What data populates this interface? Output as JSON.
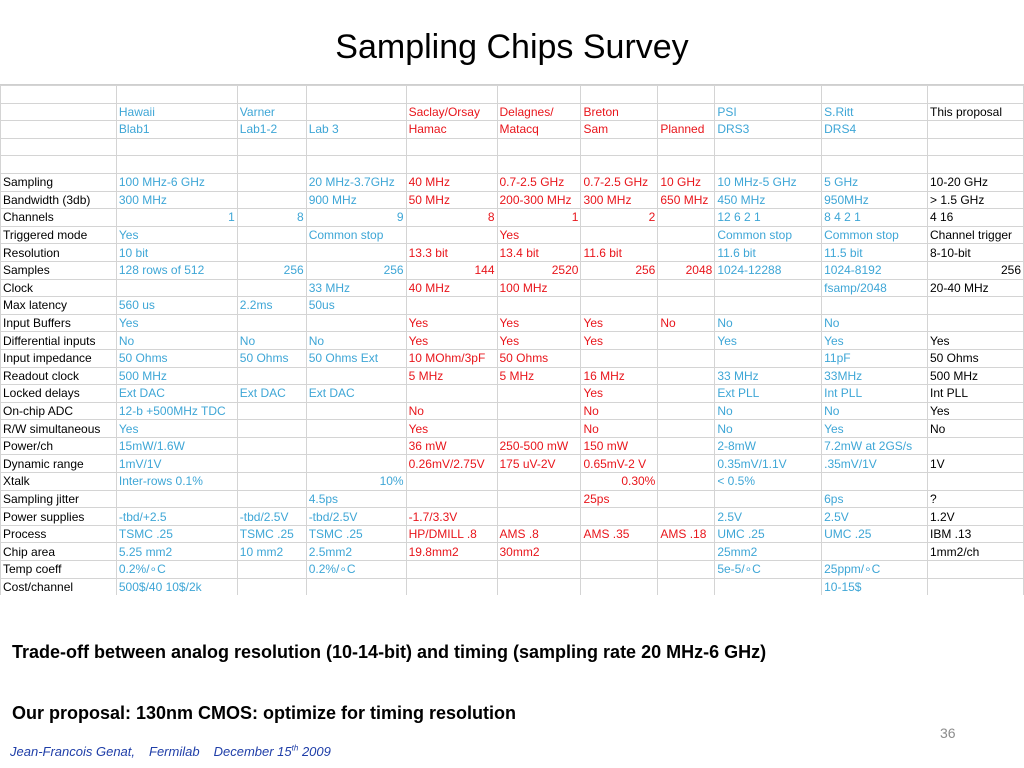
{
  "slide": {
    "title": "Sampling Chips Survey",
    "caption_tradeoff": "Trade-off between analog resolution (10-14-bit) and  timing (sampling rate  20 MHz-6 GHz)",
    "caption_proposal": "Our proposal:   130nm CMOS:  optimize for timing resolution",
    "page_number": "36",
    "footer": {
      "author": "Jean-Francois Genat,",
      "lab": "Fermilab",
      "date_prefix": "December 15",
      "date_sup": "th",
      "year": "2009"
    }
  },
  "table": {
    "columns": [
      {
        "color": "#3ea6d6"
      },
      {
        "color": "#3ea6d6"
      },
      {
        "color": "#3ea6d6"
      },
      {
        "color": "#e8151b"
      },
      {
        "color": "#e8151b"
      },
      {
        "color": "#e8151b"
      },
      {
        "color": "#e8151b"
      },
      {
        "color": "#3ea6d6"
      },
      {
        "color": "#3ea6d6"
      },
      {
        "color": "#000000"
      }
    ],
    "rows": [
      {
        "label": "",
        "cells": [
          {
            "t": ""
          },
          {
            "t": ""
          },
          {
            "t": ""
          },
          {
            "t": ""
          },
          {
            "t": ""
          },
          {
            "t": ""
          },
          {
            "t": ""
          },
          {
            "t": ""
          },
          {
            "t": ""
          },
          {
            "t": ""
          }
        ]
      },
      {
        "label": "",
        "cells": [
          {
            "t": "Hawaii"
          },
          {
            "t": " Varner"
          },
          {
            "t": ""
          },
          {
            "t": "Saclay/Orsay"
          },
          {
            "t": "Delagnes/"
          },
          {
            "t": "Breton"
          },
          {
            "t": ""
          },
          {
            "t": "PSI"
          },
          {
            "t": "S.Ritt"
          },
          {
            "t": "This proposal"
          }
        ]
      },
      {
        "label": "",
        "cells": [
          {
            "t": "Blab1"
          },
          {
            "t": "Lab1-2"
          },
          {
            "t": "Lab 3"
          },
          {
            "t": "Hamac"
          },
          {
            "t": "Matacq"
          },
          {
            "t": "Sam"
          },
          {
            "t": "Planned"
          },
          {
            "t": "DRS3"
          },
          {
            "t": "DRS4"
          },
          {
            "t": ""
          }
        ]
      },
      {
        "label": "",
        "cells": [
          {
            "t": ""
          },
          {
            "t": ""
          },
          {
            "t": ""
          },
          {
            "t": ""
          },
          {
            "t": ""
          },
          {
            "t": ""
          },
          {
            "t": ""
          },
          {
            "t": ""
          },
          {
            "t": ""
          },
          {
            "t": ""
          }
        ]
      },
      {
        "label": "",
        "cells": [
          {
            "t": ""
          },
          {
            "t": ""
          },
          {
            "t": ""
          },
          {
            "t": ""
          },
          {
            "t": ""
          },
          {
            "t": ""
          },
          {
            "t": ""
          },
          {
            "t": ""
          },
          {
            "t": ""
          },
          {
            "t": ""
          }
        ]
      },
      {
        "label": "Sampling",
        "cells": [
          {
            "t": "100 MHz-6 GHz"
          },
          {
            "t": ""
          },
          {
            "t": "20 MHz-3.7GHz"
          },
          {
            "t": "40 MHz"
          },
          {
            "t": "0.7-2.5 GHz"
          },
          {
            "t": "0.7-2.5 GHz"
          },
          {
            "t": "10 GHz"
          },
          {
            "t": "10 MHz-5 GHz"
          },
          {
            "t": "5 GHz"
          },
          {
            "t": "10-20 GHz"
          }
        ]
      },
      {
        "label": "Bandwidth (3db)",
        "cells": [
          {
            "t": "300 MHz"
          },
          {
            "t": ""
          },
          {
            "t": "900 MHz"
          },
          {
            "t": "50 MHz"
          },
          {
            "t": "200-300 MHz"
          },
          {
            "t": "300 MHz"
          },
          {
            "t": "650 MHz"
          },
          {
            "t": "450 MHz"
          },
          {
            "t": "950MHz"
          },
          {
            "t": "> 1.5 GHz"
          }
        ]
      },
      {
        "label": "Channels",
        "cells": [
          {
            "t": "1",
            "r": 1
          },
          {
            "t": "8",
            "r": 1
          },
          {
            "t": "9",
            "r": 1
          },
          {
            "t": "8",
            "r": 1
          },
          {
            "t": "1",
            "r": 1
          },
          {
            "t": "2",
            "r": 1
          },
          {
            "t": ""
          },
          {
            "t": "12 6 2 1"
          },
          {
            "t": "8 4 2 1"
          },
          {
            "t": "4 16"
          }
        ]
      },
      {
        "label": "Triggered mode",
        "cells": [
          {
            "t": "Yes"
          },
          {
            "t": ""
          },
          {
            "t": "Common stop"
          },
          {
            "t": ""
          },
          {
            "t": "Yes"
          },
          {
            "t": ""
          },
          {
            "t": ""
          },
          {
            "t": "Common stop"
          },
          {
            "t": "Common stop"
          },
          {
            "t": "Channel trigger"
          }
        ]
      },
      {
        "label": "Resolution",
        "cells": [
          {
            "t": "10 bit"
          },
          {
            "t": ""
          },
          {
            "t": ""
          },
          {
            "t": "13.3 bit"
          },
          {
            "t": "13.4 bit"
          },
          {
            "t": "11.6 bit"
          },
          {
            "t": ""
          },
          {
            "t": "11.6 bit"
          },
          {
            "t": "11.5 bit"
          },
          {
            "t": "8-10-bit"
          }
        ]
      },
      {
        "label": "Samples",
        "cells": [
          {
            "t": "128 rows of 512"
          },
          {
            "t": "256",
            "r": 1
          },
          {
            "t": "256",
            "r": 1
          },
          {
            "t": "144",
            "r": 1
          },
          {
            "t": "2520",
            "r": 1
          },
          {
            "t": "256",
            "r": 1
          },
          {
            "t": "2048",
            "r": 1
          },
          {
            "t": "1024-12288"
          },
          {
            "t": "1024-8192"
          },
          {
            "t": "256",
            "r": 1
          }
        ]
      },
      {
        "label": "Clock",
        "cells": [
          {
            "t": ""
          },
          {
            "t": ""
          },
          {
            "t": "33 MHz"
          },
          {
            "t": "40 MHz"
          },
          {
            "t": "100 MHz"
          },
          {
            "t": ""
          },
          {
            "t": ""
          },
          {
            "t": ""
          },
          {
            "t": "fsamp/2048"
          },
          {
            "t": "20-40 MHz"
          }
        ]
      },
      {
        "label": "Max latency",
        "cells": [
          {
            "t": "560 us"
          },
          {
            "t": "2.2ms"
          },
          {
            "t": "50us"
          },
          {
            "t": ""
          },
          {
            "t": ""
          },
          {
            "t": ""
          },
          {
            "t": ""
          },
          {
            "t": ""
          },
          {
            "t": ""
          },
          {
            "t": ""
          }
        ]
      },
      {
        "label": "Input Buffers",
        "cells": [
          {
            "t": "Yes"
          },
          {
            "t": ""
          },
          {
            "t": ""
          },
          {
            "t": "Yes"
          },
          {
            "t": "Yes"
          },
          {
            "t": "Yes"
          },
          {
            "t": "No"
          },
          {
            "t": "No"
          },
          {
            "t": "No"
          },
          {
            "t": ""
          }
        ]
      },
      {
        "label": "Differential inputs",
        "cells": [
          {
            "t": "No"
          },
          {
            "t": "No"
          },
          {
            "t": "No"
          },
          {
            "t": "Yes"
          },
          {
            "t": "Yes"
          },
          {
            "t": "Yes"
          },
          {
            "t": ""
          },
          {
            "t": "Yes"
          },
          {
            "t": "Yes"
          },
          {
            "t": "Yes"
          }
        ]
      },
      {
        "label": "Input impedance",
        "cells": [
          {
            "t": "50 Ohms"
          },
          {
            "t": "50 Ohms"
          },
          {
            "t": "50 Ohms Ext"
          },
          {
            "t": "10 MOhm/3pF"
          },
          {
            "t": "50 Ohms"
          },
          {
            "t": ""
          },
          {
            "t": ""
          },
          {
            "t": ""
          },
          {
            "t": "11pF"
          },
          {
            "t": "50 Ohms"
          }
        ]
      },
      {
        "label": "Readout clock",
        "cells": [
          {
            "t": "500 MHz"
          },
          {
            "t": ""
          },
          {
            "t": ""
          },
          {
            "t": "5 MHz"
          },
          {
            "t": "5 MHz"
          },
          {
            "t": "16 MHz"
          },
          {
            "t": ""
          },
          {
            "t": "33 MHz"
          },
          {
            "t": "33MHz"
          },
          {
            "t": "500 MHz"
          }
        ]
      },
      {
        "label": "Locked delays",
        "cells": [
          {
            "t": "Ext DAC"
          },
          {
            "t": "Ext DAC"
          },
          {
            "t": "Ext DAC"
          },
          {
            "t": ""
          },
          {
            "t": ""
          },
          {
            "t": "Yes"
          },
          {
            "t": ""
          },
          {
            "t": "Ext PLL"
          },
          {
            "t": "Int PLL"
          },
          {
            "t": "Int PLL"
          }
        ]
      },
      {
        "label": "On-chip ADC",
        "cells": [
          {
            "t": "12-b +500MHz TDC"
          },
          {
            "t": ""
          },
          {
            "t": ""
          },
          {
            "t": "No"
          },
          {
            "t": ""
          },
          {
            "t": "No"
          },
          {
            "t": ""
          },
          {
            "t": "No"
          },
          {
            "t": "No"
          },
          {
            "t": "Yes"
          }
        ]
      },
      {
        "label": "R/W simultaneous",
        "cells": [
          {
            "t": "Yes"
          },
          {
            "t": ""
          },
          {
            "t": ""
          },
          {
            "t": "Yes"
          },
          {
            "t": ""
          },
          {
            "t": "No"
          },
          {
            "t": ""
          },
          {
            "t": "No"
          },
          {
            "t": "Yes"
          },
          {
            "t": "No"
          }
        ]
      },
      {
        "label": "Power/ch",
        "cells": [
          {
            "t": "15mW/1.6W"
          },
          {
            "t": ""
          },
          {
            "t": ""
          },
          {
            "t": "36 mW"
          },
          {
            "t": "250-500 mW"
          },
          {
            "t": "150 mW"
          },
          {
            "t": ""
          },
          {
            "t": "2-8mW"
          },
          {
            "t": "7.2mW at 2GS/s"
          },
          {
            "t": ""
          }
        ]
      },
      {
        "label": "Dynamic range",
        "cells": [
          {
            "t": "1mV/1V"
          },
          {
            "t": ""
          },
          {
            "t": ""
          },
          {
            "t": "0.26mV/2.75V"
          },
          {
            "t": "175 uV-2V"
          },
          {
            "t": "0.65mV-2 V"
          },
          {
            "t": ""
          },
          {
            "t": "0.35mV/1.1V"
          },
          {
            "t": ".35mV/1V"
          },
          {
            "t": "1V"
          }
        ]
      },
      {
        "label": "Xtalk",
        "cells": [
          {
            "t": "Inter-rows  0.1%"
          },
          {
            "t": ""
          },
          {
            "t": "10%",
            "r": 1
          },
          {
            "t": ""
          },
          {
            "t": ""
          },
          {
            "t": "0.30%",
            "r": 1
          },
          {
            "t": ""
          },
          {
            "t": "< 0.5%"
          },
          {
            "t": ""
          },
          {
            "t": ""
          }
        ]
      },
      {
        "label": "Sampling jitter",
        "cells": [
          {
            "t": ""
          },
          {
            "t": ""
          },
          {
            "t": "4.5ps"
          },
          {
            "t": ""
          },
          {
            "t": ""
          },
          {
            "t": "25ps"
          },
          {
            "t": ""
          },
          {
            "t": ""
          },
          {
            "t": "6ps"
          },
          {
            "t": "?"
          }
        ]
      },
      {
        "label": "Power supplies",
        "cells": [
          {
            "t": " -tbd/+2.5"
          },
          {
            "t": " -tbd/2.5V"
          },
          {
            "t": " -tbd/2.5V"
          },
          {
            "t": " -1.7/3.3V"
          },
          {
            "t": ""
          },
          {
            "t": ""
          },
          {
            "t": ""
          },
          {
            "t": "2.5V"
          },
          {
            "t": "2.5V"
          },
          {
            "t": "1.2V"
          }
        ]
      },
      {
        "label": "Process",
        "cells": [
          {
            "t": "TSMC .25"
          },
          {
            "t": "TSMC .25"
          },
          {
            "t": "TSMC .25"
          },
          {
            "t": "HP/DMILL .8"
          },
          {
            "t": "AMS .8"
          },
          {
            "t": "AMS .35"
          },
          {
            "t": "AMS .18"
          },
          {
            "t": "UMC .25"
          },
          {
            "t": "UMC .25"
          },
          {
            "t": "IBM .13"
          }
        ]
      },
      {
        "label": "Chip area",
        "cells": [
          {
            "t": "5.25 mm2"
          },
          {
            "t": "10 mm2"
          },
          {
            "t": "2.5mm2"
          },
          {
            "t": "19.8mm2"
          },
          {
            "t": "30mm2"
          },
          {
            "t": ""
          },
          {
            "t": ""
          },
          {
            "t": "25mm2"
          },
          {
            "t": ""
          },
          {
            "t": "1mm2/ch"
          }
        ]
      },
      {
        "label": "Temp coeff",
        "cells": [
          {
            "t": "0.2%/∘C"
          },
          {
            "t": ""
          },
          {
            "t": "0.2%/∘C"
          },
          {
            "t": ""
          },
          {
            "t": ""
          },
          {
            "t": ""
          },
          {
            "t": ""
          },
          {
            "t": "5e-5/∘C"
          },
          {
            "t": "25ppm/∘C"
          },
          {
            "t": ""
          }
        ]
      },
      {
        "label": "Cost/channel",
        "cells": [
          {
            "t": "500$/40  10$/2k"
          },
          {
            "t": ""
          },
          {
            "t": ""
          },
          {
            "t": ""
          },
          {
            "t": ""
          },
          {
            "t": ""
          },
          {
            "t": ""
          },
          {
            "t": ""
          },
          {
            "t": "10-15$"
          },
          {
            "t": ""
          }
        ]
      }
    ]
  }
}
